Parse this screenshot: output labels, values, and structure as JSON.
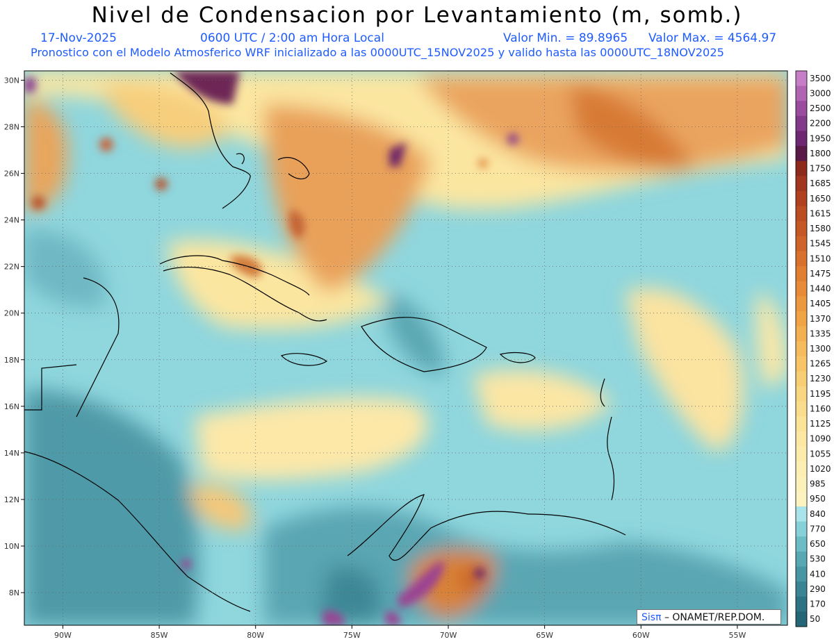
{
  "header": {
    "title": "Nivel de Condensacion por Levantamiento (m, somb.)",
    "date": "17-Nov-2025",
    "time": "0600 UTC / 2:00 am Hora Local",
    "min_label": "Valor Min. = 89.8965",
    "max_label": "Valor Max. = 4564.97",
    "forecast_note": "Pronostico con el Modelo Atmosferico WRF inicializado a las 0000UTC_15NOV2025 y valido hasta las  0000UTC_18NOV2025"
  },
  "map": {
    "lon_ticks": [
      "90W",
      "85W",
      "80W",
      "75W",
      "70W",
      "65W",
      "60W",
      "55W"
    ],
    "lat_ticks": [
      "30N",
      "28N",
      "26N",
      "24N",
      "22N",
      "20N",
      "18N",
      "16N",
      "14N",
      "12N",
      "10N",
      "8N"
    ],
    "lon_range": [
      -92,
      -52.4
    ],
    "lat_range": [
      6.6,
      30.4
    ],
    "grid_lines": true
  },
  "colorbar": {
    "labels": [
      "3500",
      "3000",
      "2500",
      "2200",
      "1950",
      "1800",
      "1750",
      "1685",
      "1650",
      "1615",
      "1580",
      "1545",
      "1510",
      "1475",
      "1440",
      "1405",
      "1370",
      "1335",
      "1300",
      "1265",
      "1230",
      "1195",
      "1160",
      "1125",
      "1090",
      "1055",
      "1020",
      "985",
      "950",
      "840",
      "770",
      "650",
      "530",
      "410",
      "290",
      "170",
      "50"
    ],
    "colors": [
      "#c67ec6",
      "#b065b2",
      "#9a4d9e",
      "#843a8a",
      "#6e2872",
      "#5a1a48",
      "#8e2a1c",
      "#a0361e",
      "#b04020",
      "#bc4c22",
      "#c65826",
      "#cf642a",
      "#d8712e",
      "#e07e32",
      "#e78b38",
      "#ec983e",
      "#f0a446",
      "#f3b050",
      "#f5bb5c",
      "#f7c568",
      "#f8ce74",
      "#f9d680",
      "#fadd8c",
      "#fbe398",
      "#fce8a2",
      "#fcecab",
      "#fdefb3",
      "#fdf1ba",
      "#fdf3c0",
      "#a8e4ea",
      "#86d0d8",
      "#6cbcc6",
      "#58a8b4",
      "#4896a4",
      "#3a8494",
      "#2e7384",
      "#246676"
    ]
  },
  "credit": {
    "brand": "Sisπ",
    "text": "– ONAMET/REP.DOM."
  }
}
